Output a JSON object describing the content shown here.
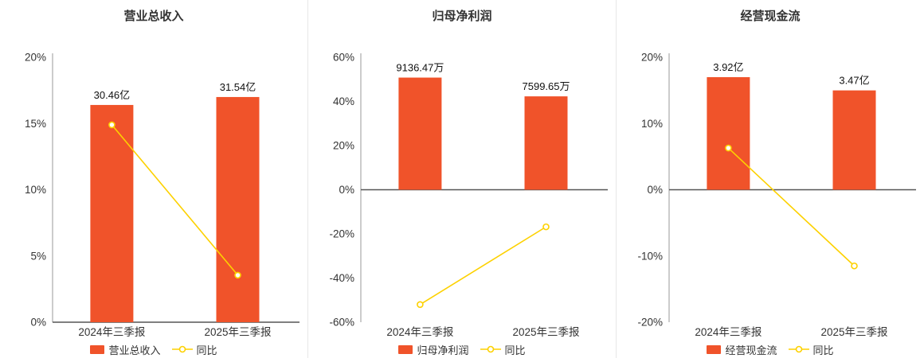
{
  "colors": {
    "bar": "#f0532a",
    "line": "#fdd100",
    "axis": "#999999",
    "zero_line": "#555555",
    "text": "#333333",
    "value_label": "#111111",
    "divider": "#e7e7e7"
  },
  "chart_data": [
    {
      "type": "bar",
      "title": "营业总收入",
      "categories": [
        "2024年三季报",
        "2025年三季报"
      ],
      "bar_series": {
        "name": "营业总收入",
        "value_labels": [
          "30.46亿",
          "31.54亿"
        ],
        "display_pct": [
          16.4,
          17.0
        ]
      },
      "line_series": {
        "name": "同比",
        "values_pct": [
          14.9,
          3.55
        ]
      },
      "ylim": [
        0,
        20
      ],
      "yticks": [
        0,
        5,
        10,
        15,
        20
      ],
      "ytick_suffix": "%",
      "legend": [
        "营业总收入",
        "同比"
      ],
      "legend_position": "bottom",
      "grid": false
    },
    {
      "type": "bar",
      "title": "归母净利润",
      "categories": [
        "2024年三季报",
        "2025年三季报"
      ],
      "bar_series": {
        "name": "归母净利润",
        "value_labels": [
          "9136.47万",
          "7599.65万"
        ],
        "display_pct": [
          50.8,
          42.3
        ]
      },
      "line_series": {
        "name": "同比",
        "values_pct": [
          -52.0,
          -16.8
        ]
      },
      "ylim": [
        -60,
        60
      ],
      "yticks": [
        -60,
        -40,
        -20,
        0,
        20,
        40,
        60
      ],
      "ytick_suffix": "%",
      "legend": [
        "归母净利润",
        "同比"
      ],
      "legend_position": "bottom",
      "grid": false
    },
    {
      "type": "bar",
      "title": "经营现金流",
      "categories": [
        "2024年三季报",
        "2025年三季报"
      ],
      "bar_series": {
        "name": "经营现金流",
        "value_labels": [
          "3.92亿",
          "3.47亿"
        ],
        "display_pct": [
          17.0,
          15.0
        ]
      },
      "line_series": {
        "name": "同比",
        "values_pct": [
          6.3,
          -11.5
        ]
      },
      "ylim": [
        -20,
        20
      ],
      "yticks": [
        -20,
        -10,
        0,
        10,
        20
      ],
      "ytick_suffix": "%",
      "legend": [
        "经营现金流",
        "同比"
      ],
      "legend_position": "bottom",
      "grid": false
    }
  ]
}
